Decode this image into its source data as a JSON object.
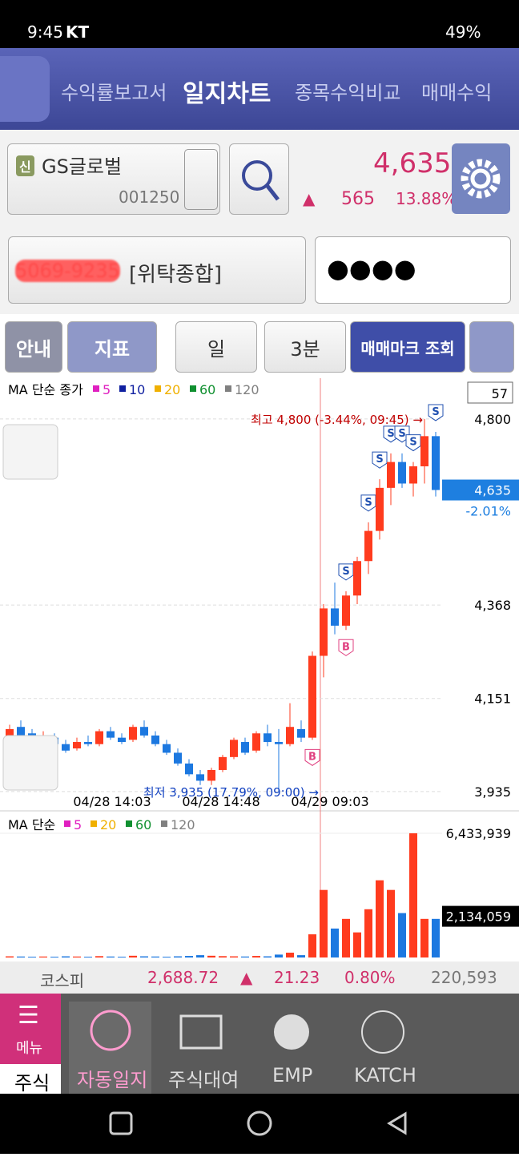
{
  "status_bar": {
    "time": "9:45",
    "carrier": "KT",
    "battery": "49%"
  },
  "tabs": [
    "수익률보고서",
    "일지차트",
    "종목수익비교",
    "매매수익"
  ],
  "stock": {
    "badge": "신",
    "name": "GS글로벌",
    "code": "001250",
    "price": "4,635",
    "change": "565",
    "change_pct": "13.88%"
  },
  "account": {
    "number": "5069-9235",
    "type": "[위탁종합]",
    "password": "●●●●"
  },
  "buttons": [
    "안내",
    "지표",
    "일",
    "3분",
    "매매마크 조회"
  ],
  "chart": {
    "legend": "MA 단순 종가",
    "ma": [
      {
        "name": "5",
        "color": "#e020c0"
      },
      {
        "name": "10",
        "color": "#1020a0"
      },
      {
        "name": "20",
        "color": "#f0b000"
      },
      {
        "name": "60",
        "color": "#109030"
      },
      {
        "name": "120",
        "color": "#808080"
      }
    ],
    "count": "57",
    "ylim": [
      3931,
      4889
    ],
    "yticks": [
      {
        "value": 4800,
        "label": "4,800"
      },
      {
        "value": 4368,
        "label": "4,368"
      },
      {
        "value": 4151,
        "label": "4,151"
      },
      {
        "value": 3935,
        "label": "3,935"
      }
    ],
    "current": {
      "value": 4635,
      "label": "4,635"
    },
    "current_pct": "-2.01%",
    "high_note": "최고 4,800 (-3.44%, 09:45) →",
    "low_note": "최저 3,935 (17.79%, 09:00) →",
    "x_labels": [
      "04/28 14:03",
      "04/28 14:48",
      "04/29 09:03"
    ],
    "up_color": "#ff3b1e",
    "down_color": "#1c78e0",
    "candles": [
      {
        "o": 4060,
        "h": 4090,
        "l": 4040,
        "c": 4080
      },
      {
        "o": 4085,
        "h": 4100,
        "l": 4060,
        "c": 4065
      },
      {
        "o": 4070,
        "h": 4080,
        "l": 4045,
        "c": 4050
      },
      {
        "o": 4050,
        "h": 4075,
        "l": 4040,
        "c": 4065
      },
      {
        "o": 4060,
        "h": 4070,
        "l": 4035,
        "c": 4045
      },
      {
        "o": 4045,
        "h": 4055,
        "l": 4025,
        "c": 4030
      },
      {
        "o": 4035,
        "h": 4060,
        "l": 4030,
        "c": 4050
      },
      {
        "o": 4050,
        "h": 4065,
        "l": 4040,
        "c": 4045
      },
      {
        "o": 4045,
        "h": 4080,
        "l": 4040,
        "c": 4075
      },
      {
        "o": 4075,
        "h": 4085,
        "l": 4055,
        "c": 4060
      },
      {
        "o": 4060,
        "h": 4070,
        "l": 4045,
        "c": 4050
      },
      {
        "o": 4055,
        "h": 4090,
        "l": 4050,
        "c": 4085
      },
      {
        "o": 4085,
        "h": 4100,
        "l": 4060,
        "c": 4065
      },
      {
        "o": 4065,
        "h": 4075,
        "l": 4040,
        "c": 4045
      },
      {
        "o": 4045,
        "h": 4055,
        "l": 4020,
        "c": 4025
      },
      {
        "o": 4025,
        "h": 4035,
        "l": 3995,
        "c": 4000
      },
      {
        "o": 4000,
        "h": 4010,
        "l": 3970,
        "c": 3975
      },
      {
        "o": 3975,
        "h": 3985,
        "l": 3950,
        "c": 3960
      },
      {
        "o": 3960,
        "h": 3990,
        "l": 3950,
        "c": 3985
      },
      {
        "o": 3985,
        "h": 4020,
        "l": 3980,
        "c": 4015
      },
      {
        "o": 4015,
        "h": 4060,
        "l": 4010,
        "c": 4055
      },
      {
        "o": 4050,
        "h": 4060,
        "l": 4020,
        "c": 4025
      },
      {
        "o": 4030,
        "h": 4075,
        "l": 4025,
        "c": 4070
      },
      {
        "o": 4070,
        "h": 4090,
        "l": 4040,
        "c": 4050
      },
      {
        "o": 4050,
        "h": 4080,
        "l": 3935,
        "c": 4045
      },
      {
        "o": 4045,
        "h": 4140,
        "l": 4040,
        "c": 4085
      },
      {
        "o": 4080,
        "h": 4100,
        "l": 4050,
        "c": 4060
      },
      {
        "o": 4060,
        "h": 4260,
        "l": 4055,
        "c": 4250,
        "marks": [
          "B"
        ]
      },
      {
        "o": 4250,
        "h": 4370,
        "l": 4200,
        "c": 4360
      },
      {
        "o": 4360,
        "h": 4420,
        "l": 4300,
        "c": 4320
      },
      {
        "o": 4320,
        "h": 4400,
        "l": 4310,
        "c": 4390,
        "marks": [
          "S",
          "B"
        ]
      },
      {
        "o": 4390,
        "h": 4480,
        "l": 4370,
        "c": 4470
      },
      {
        "o": 4470,
        "h": 4560,
        "l": 4440,
        "c": 4540,
        "marks": [
          "S"
        ]
      },
      {
        "o": 4540,
        "h": 4660,
        "l": 4520,
        "c": 4640,
        "marks": [
          "S"
        ]
      },
      {
        "o": 4640,
        "h": 4720,
        "l": 4600,
        "c": 4700,
        "marks": [
          "S"
        ]
      },
      {
        "o": 4700,
        "h": 4720,
        "l": 4640,
        "c": 4650,
        "marks": [
          "S"
        ]
      },
      {
        "o": 4650,
        "h": 4700,
        "l": 4620,
        "c": 4690,
        "marks": [
          "S"
        ]
      },
      {
        "o": 4690,
        "h": 4800,
        "l": 4650,
        "c": 4760
      },
      {
        "o": 4760,
        "h": 4770,
        "l": 4620,
        "c": 4635,
        "marks": [
          "S"
        ]
      }
    ]
  },
  "volume": {
    "legend": "MA 단순",
    "ma": [
      {
        "name": "5",
        "color": "#e020c0"
      },
      {
        "name": "20",
        "color": "#f0b000"
      },
      {
        "name": "60",
        "color": "#109030"
      },
      {
        "name": "120",
        "color": "#808080"
      }
    ],
    "ylim": [
      0,
      6433939
    ],
    "yticks": [
      {
        "value": 6433939,
        "label": "6,433,939"
      }
    ],
    "ma_value": {
      "value": 2134059,
      "label": "2,134,059"
    },
    "values": [
      60000,
      50000,
      40000,
      50000,
      40000,
      60000,
      50000,
      40000,
      70000,
      50000,
      40000,
      90000,
      60000,
      50000,
      40000,
      60000,
      80000,
      120000,
      90000,
      70000,
      60000,
      50000,
      80000,
      60000,
      150000,
      250000,
      120000,
      1200000,
      3500000,
      1500000,
      2000000,
      1300000,
      2500000,
      4000000,
      3500000,
      2300000,
      6433939,
      2000000,
      2000000
    ]
  },
  "index_bar": {
    "name": "코스피",
    "value": "2,688.72",
    "change": "21.23",
    "change_pct": "0.80%",
    "volume": "220,593"
  },
  "nav": {
    "menu": "메뉴",
    "stock": "주식",
    "items": [
      "자동일지",
      "주식대여",
      "EMP",
      "KATCH"
    ]
  }
}
